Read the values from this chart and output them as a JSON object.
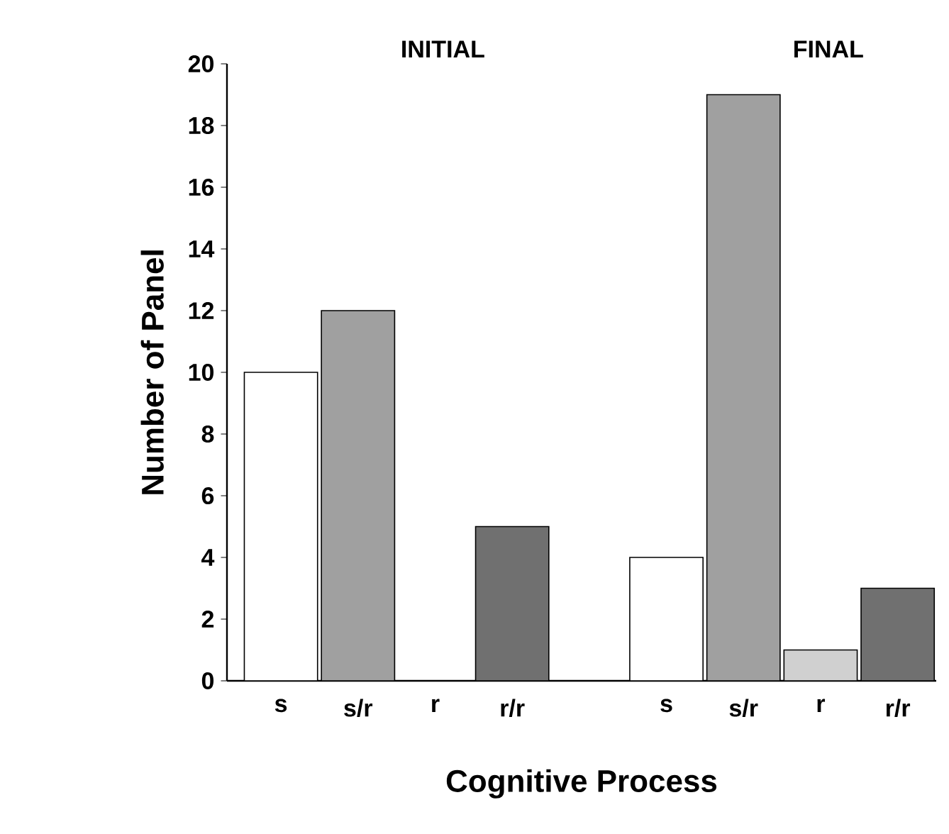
{
  "chart_data": {
    "type": "bar",
    "xlabel": "Cognitive Process",
    "ylabel": "Number of Panel",
    "categories": [
      "s",
      "s/r",
      "r",
      "r/r",
      null,
      "s",
      "s/r",
      "r",
      "r/r"
    ],
    "values": [
      10,
      12,
      0,
      5,
      null,
      4,
      19,
      1,
      3
    ],
    "colors": [
      "#ffffff",
      "#a0a0a0",
      "#d0d0d0",
      "#707070",
      null,
      "#ffffff",
      "#a0a0a0",
      "#d0d0d0",
      "#707070"
    ],
    "ylim": [
      0,
      20
    ],
    "yticks": [
      0,
      2,
      4,
      6,
      8,
      10,
      12,
      14,
      16,
      18,
      20
    ],
    "annotations": [
      "INITIAL",
      "FINAL"
    ]
  }
}
